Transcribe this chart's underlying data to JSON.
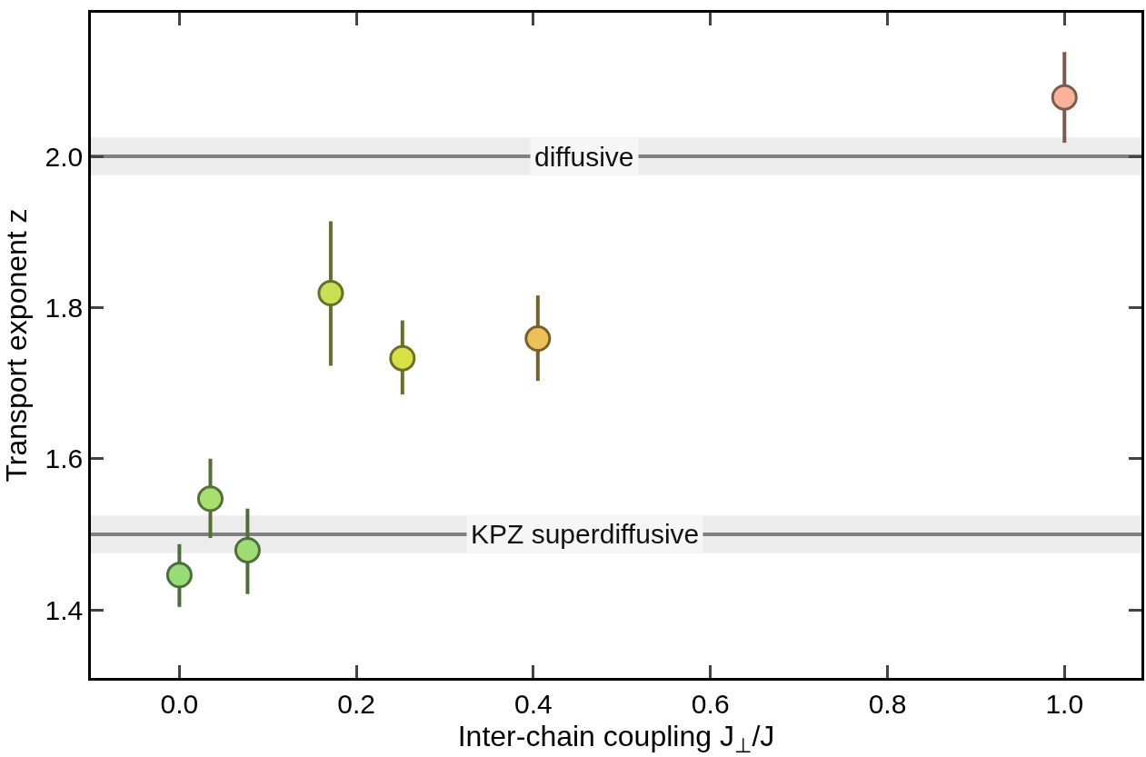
{
  "chart_data": {
    "type": "scatter",
    "xlabel": "Inter-chain coupling J$_{⊥}$/J",
    "ylabel": "Transport exponent z",
    "x": [
      0.0,
      0.035,
      0.077,
      0.171,
      0.252,
      0.405,
      1.0
    ],
    "values": [
      1.446,
      1.547,
      1.479,
      1.819,
      1.733,
      1.759,
      2.078
    ],
    "errors": [
      [
        1.404,
        1.487
      ],
      [
        1.495,
        1.6
      ],
      [
        1.421,
        1.534
      ],
      [
        1.723,
        1.914
      ],
      [
        1.685,
        1.783
      ],
      [
        1.703,
        1.816
      ],
      [
        2.018,
        2.138
      ]
    ],
    "colors": [
      "#98dc78",
      "#a8e070",
      "#a0dc74",
      "#c8e055",
      "#d8e048",
      "#eec058",
      "#f9b39a"
    ],
    "marker": "circle",
    "xlim": [
      -0.1,
      1.087
    ],
    "xticks": [
      {
        "value": 0,
        "label": "0.0"
      },
      0.2,
      0.4,
      0.6,
      0.8,
      {
        "value": 1,
        "label": "1.0"
      }
    ],
    "ylim": [
      1.31,
      2.19
    ],
    "yticks": [
      1.4,
      1.6,
      1.8,
      {
        "value": 2,
        "label": "2.0"
      }
    ],
    "bands": [
      {
        "axis": "y",
        "from": 1.975,
        "to": 2.025,
        "color": "#ececec"
      },
      {
        "axis": "y",
        "from": 1.475,
        "to": 1.525,
        "color": "#ececec"
      }
    ],
    "ref_lines": [
      {
        "axis": "y",
        "value": 2.0,
        "label": "diffusive",
        "color": "#808080"
      },
      {
        "axis": "y",
        "value": 1.5,
        "label": "KPZ superdiffusive",
        "color": "#808080"
      }
    ]
  }
}
